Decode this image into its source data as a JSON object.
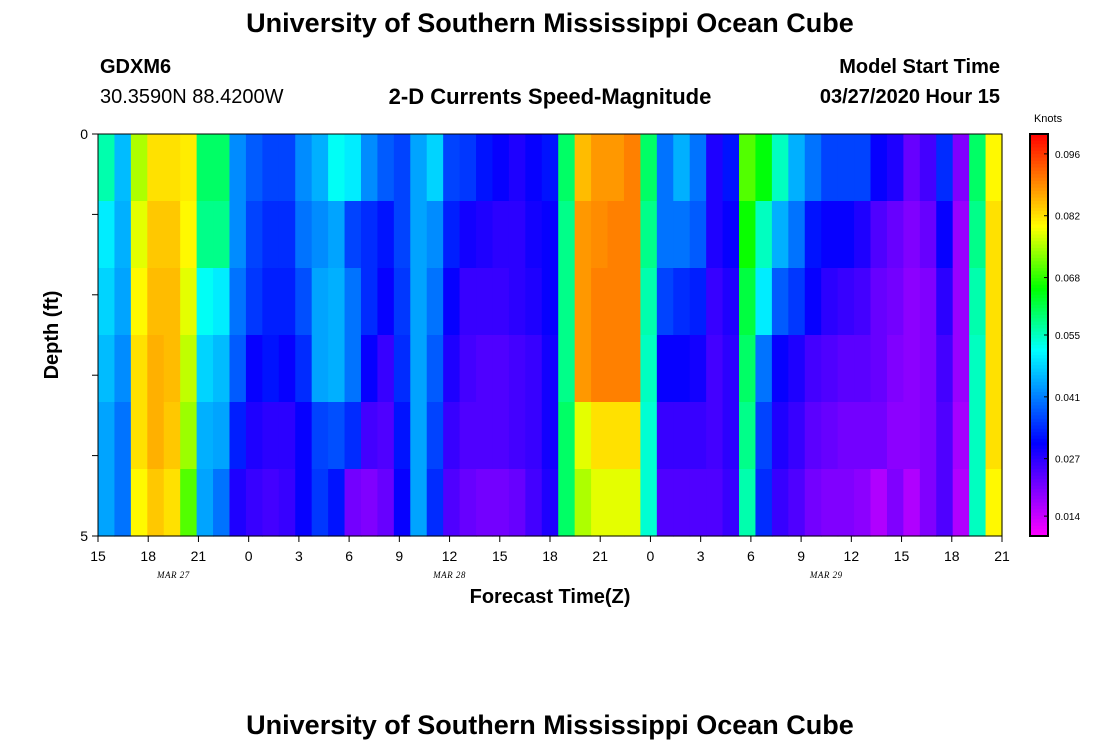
{
  "title": "University of Southern Mississippi Ocean Cube",
  "footer_title": "University of Southern Mississippi Ocean Cube",
  "station": {
    "id": "GDXM6",
    "coords": "30.3590N 88.4200W"
  },
  "model_start": {
    "label": "Model Start Time",
    "value": "03/27/2020 Hour 15"
  },
  "chart_data": {
    "type": "heatmap",
    "title": "2-D Currents Speed-Magnitude",
    "xlabel": "Forecast Time(Z)",
    "ylabel": "Depth (ft)",
    "x_tick_labels": [
      "15",
      "18",
      "21",
      "0",
      "3",
      "6",
      "9",
      "12",
      "15",
      "18",
      "21",
      "0",
      "3",
      "6",
      "9",
      "12",
      "15",
      "18",
      "21"
    ],
    "x_date_labels": [
      {
        "text": "MAR  27",
        "at_tick": 1.5
      },
      {
        "text": "MAR  28",
        "at_tick": 7
      },
      {
        "text": "MAR  29",
        "at_tick": 14.5
      }
    ],
    "y_tick_labels": [
      "0",
      "5"
    ],
    "ylim": [
      0,
      5
    ],
    "x_start_hour": 15,
    "x_end_hour": 69,
    "time_step_hours": 1,
    "depth_rows": [
      0,
      1,
      2,
      3,
      4,
      5
    ],
    "colorbar": {
      "unit": "Knots",
      "min": 0.0095,
      "max": 0.1005,
      "tick_values": [
        0.014,
        0.027,
        0.041,
        0.055,
        0.068,
        0.082,
        0.096
      ],
      "tick_labels": [
        "0.014",
        "0.027",
        "0.041",
        "0.055",
        "0.068",
        "0.082",
        "0.096"
      ],
      "colors": [
        "#ff00ff",
        "#aa00ff",
        "#5500ff",
        "#0000ff",
        "#0055ff",
        "#00aaff",
        "#00ffff",
        "#00ff80",
        "#00ff00",
        "#80ff00",
        "#ffff00",
        "#ffaa00",
        "#ff5500",
        "#ff0000"
      ]
    },
    "values_knots": [
      [
        0.056,
        0.046,
        0.075,
        0.082,
        0.082,
        0.081,
        0.06,
        0.06,
        0.042,
        0.038,
        0.036,
        0.036,
        0.042,
        0.045,
        0.052,
        0.05,
        0.042,
        0.038,
        0.036,
        0.044,
        0.048,
        0.036,
        0.035,
        0.032,
        0.03,
        0.028,
        0.03,
        0.032,
        0.06,
        0.085,
        0.088,
        0.088,
        0.09,
        0.06,
        0.04,
        0.045,
        0.04,
        0.028,
        0.032,
        0.07,
        0.065,
        0.055,
        0.045,
        0.04,
        0.036,
        0.036,
        0.036,
        0.03,
        0.028,
        0.022,
        0.025,
        0.034,
        0.02,
        0.06,
        0.08
      ],
      [
        0.05,
        0.045,
        0.078,
        0.084,
        0.084,
        0.08,
        0.058,
        0.058,
        0.042,
        0.036,
        0.034,
        0.034,
        0.04,
        0.042,
        0.044,
        0.036,
        0.034,
        0.032,
        0.036,
        0.044,
        0.042,
        0.033,
        0.029,
        0.028,
        0.027,
        0.027,
        0.029,
        0.03,
        0.058,
        0.088,
        0.089,
        0.09,
        0.09,
        0.058,
        0.04,
        0.04,
        0.038,
        0.028,
        0.03,
        0.066,
        0.055,
        0.045,
        0.04,
        0.032,
        0.03,
        0.03,
        0.028,
        0.024,
        0.022,
        0.02,
        0.022,
        0.03,
        0.018,
        0.058,
        0.082
      ],
      [
        0.048,
        0.044,
        0.08,
        0.085,
        0.085,
        0.078,
        0.052,
        0.05,
        0.04,
        0.035,
        0.033,
        0.033,
        0.037,
        0.044,
        0.045,
        0.04,
        0.034,
        0.03,
        0.035,
        0.044,
        0.04,
        0.03,
        0.026,
        0.026,
        0.026,
        0.027,
        0.028,
        0.03,
        0.058,
        0.088,
        0.09,
        0.09,
        0.09,
        0.056,
        0.036,
        0.034,
        0.033,
        0.026,
        0.028,
        0.062,
        0.05,
        0.038,
        0.035,
        0.03,
        0.027,
        0.026,
        0.025,
        0.022,
        0.021,
        0.019,
        0.02,
        0.027,
        0.018,
        0.056,
        0.082
      ],
      [
        0.046,
        0.042,
        0.082,
        0.086,
        0.085,
        0.076,
        0.048,
        0.046,
        0.038,
        0.03,
        0.032,
        0.03,
        0.034,
        0.044,
        0.045,
        0.04,
        0.03,
        0.026,
        0.034,
        0.044,
        0.038,
        0.028,
        0.025,
        0.024,
        0.024,
        0.025,
        0.026,
        0.029,
        0.058,
        0.088,
        0.09,
        0.09,
        0.09,
        0.055,
        0.03,
        0.03,
        0.029,
        0.025,
        0.027,
        0.06,
        0.04,
        0.03,
        0.028,
        0.025,
        0.024,
        0.023,
        0.023,
        0.022,
        0.02,
        0.019,
        0.02,
        0.025,
        0.018,
        0.055,
        0.082
      ],
      [
        0.044,
        0.04,
        0.082,
        0.086,
        0.084,
        0.074,
        0.045,
        0.044,
        0.033,
        0.028,
        0.027,
        0.027,
        0.03,
        0.036,
        0.037,
        0.034,
        0.025,
        0.024,
        0.032,
        0.044,
        0.036,
        0.026,
        0.024,
        0.024,
        0.024,
        0.025,
        0.026,
        0.029,
        0.06,
        0.078,
        0.082,
        0.082,
        0.082,
        0.054,
        0.026,
        0.026,
        0.026,
        0.025,
        0.027,
        0.058,
        0.036,
        0.028,
        0.026,
        0.023,
        0.022,
        0.021,
        0.021,
        0.021,
        0.019,
        0.019,
        0.02,
        0.024,
        0.017,
        0.055,
        0.082
      ],
      [
        0.044,
        0.04,
        0.08,
        0.084,
        0.082,
        0.07,
        0.044,
        0.04,
        0.028,
        0.026,
        0.025,
        0.026,
        0.03,
        0.035,
        0.032,
        0.021,
        0.02,
        0.022,
        0.03,
        0.044,
        0.034,
        0.024,
        0.022,
        0.021,
        0.021,
        0.022,
        0.025,
        0.028,
        0.06,
        0.075,
        0.078,
        0.078,
        0.078,
        0.054,
        0.024,
        0.024,
        0.024,
        0.024,
        0.026,
        0.056,
        0.034,
        0.026,
        0.024,
        0.021,
        0.02,
        0.02,
        0.019,
        0.016,
        0.02,
        0.016,
        0.02,
        0.024,
        0.016,
        0.055,
        0.08
      ]
    ]
  }
}
